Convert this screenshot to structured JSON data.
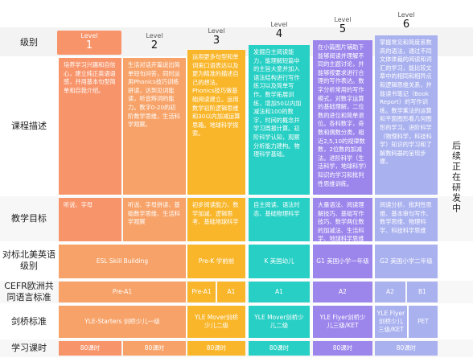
{
  "colors": {
    "c1": "#f7946a",
    "c2": "#f7a268",
    "c3": "#f9b62b",
    "c4": "#27cfc4",
    "c5": "#9c86ec",
    "c6": "#a9b1ef",
    "row_tint": "#f2f2f2",
    "border": "#dcdcdc",
    "l1_header": "#f7946a"
  },
  "rows": {
    "level": "级别",
    "description": "课程描述",
    "goals": "教学目标",
    "us": "对标北美英语级别",
    "cefr": "CEFR欧洲共同语言标准",
    "cambridge": "剑桥标准",
    "hours": "学习课时"
  },
  "levels": [
    {
      "word": "Level",
      "num": "1"
    },
    {
      "word": "Level",
      "num": "2"
    },
    {
      "word": "Level",
      "num": "3"
    },
    {
      "word": "Level",
      "num": "4"
    },
    {
      "word": "Level",
      "num": "5"
    },
    {
      "word": "Level",
      "num": "6"
    }
  ],
  "descriptions": [
    "培养学习兴趣和自信心，建立纯正英语语感，并用基本句型简单和自我介绍。",
    "生活对话开篇说出简单短句问答，同时运用Phonics技巧训练拼读，达到见词能读，听音辨词的能力。数字0-20的初阶数学思维，生活科学观察。",
    "运用更多句型和单词来口语表达以及更为精准的描述自己的想法。Phonics技巧做基础阅读建立。运用数学初阶逻辑思维和30以内加减运算思路。地球科学探索。",
    "发掘自主阅读能力，能理解短篇中的主旨大意并加入语法结构进行写作练习以及简单写作。数学拓展训练，增加50以内加减法和100的数字，时间的概念并学习周报计算。初阶科学认知，观察分析能力建构。物理科学基础。",
    "在小篇图片辅助下能够阅读并理解不同的主题讨论，并能够按要求进行合理的写作表达。数字分析常用的写作模式，对数字运算的基础理解，二位数的进位和简单退位。各科数字，奇数和偶数分类，相近2,5,10的规律数数，2位数的加减法。进阶科学（生活科学，地球科学）知识的学习和批判性思维训练。",
    "掌握常见和简度系数高的语法，通过不同文体体裁的阅读和词汇的学习，能比较文章中的相同和相异点和逻辑思维关系，并能读书笔记（Book Report）的写作训练。数学乘法的运算和平面图形看几何图形的学习。进阶科学（物理科学，科技科学）知识的学习和了解数码器的呈现步骤。"
  ],
  "goals": [
    "听说、字母",
    "听说、字母拼读、基础数学思维、生活科学观察",
    "初步阅读能力、数学加减、逻辑思考、基础地球科学",
    "自主阅读、语法时态、基础物理科学",
    "大量语法、阅读理解技巧、基础写作技巧、数学两位数的加减法、生活科学、地球科学思维",
    "阅读分析、批判性思维、基本审句写作、数学思维、物理科学、科技科学思维"
  ],
  "us_standard": [
    "ESL Skill Building",
    "Pre-K 学前前",
    "K 美国幼儿",
    "G1 美国小学一年级",
    "G2 美国小学二年级"
  ],
  "cefr": [
    "Pre-A1",
    "Pre-A1",
    "A1",
    "A1",
    "A2",
    "A2",
    "B1"
  ],
  "cambridge": [
    "YLE-Starters 剑桥少儿一级",
    "YLE Mover剑桥少儿二级",
    "YLE Mover剑桥少儿二级",
    "YLE Flyer剑桥少儿三级/KET",
    "YLE Flyer剑桥少儿三级/KET",
    "PET"
  ],
  "hours": [
    "80课时",
    "80课时",
    "80课时",
    "80课时",
    "80课时",
    "80课时"
  ],
  "side_note": "后续正在研发中"
}
